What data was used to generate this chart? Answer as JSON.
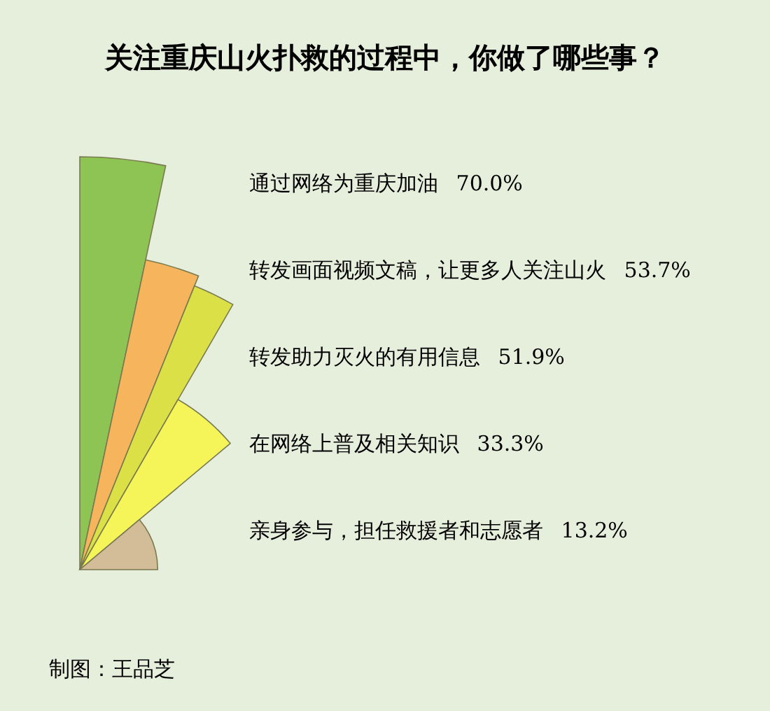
{
  "chart_data": {
    "type": "other",
    "title": "关注重庆山火扑救的过程中，你做了哪些事？",
    "categories": [
      "通过网络为重庆加油",
      "转发画面视频文稿，让更多人关注山火",
      "转发助力灭火的有用信息",
      "在网络上普及相关知识",
      "亲身参与，担任救援者和志愿者"
    ],
    "values": [
      70.0,
      53.7,
      51.9,
      33.3,
      13.2
    ],
    "value_labels": [
      "70.0%",
      "53.7%",
      "51.9%",
      "33.3%",
      "13.2%"
    ],
    "colors": [
      "#8dc453",
      "#f6b55c",
      "#dce047",
      "#f5f55a",
      "#d3bc98"
    ],
    "annotations": [
      "制图：王品芝"
    ]
  }
}
